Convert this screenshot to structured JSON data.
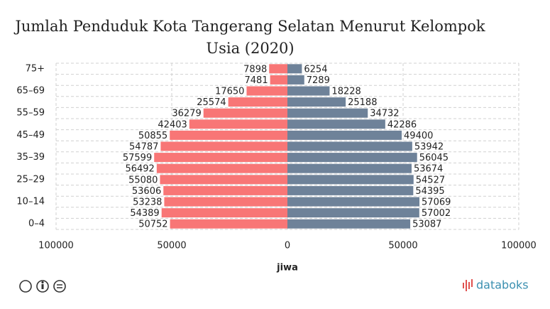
{
  "chart_data": {
    "type": "pyramid",
    "title": "Jumlah Penduduk Kota Tangerang Selatan Menurut Kelompok Usia (2020)",
    "x_label": "jiwa",
    "categories": [
      "0–4",
      null,
      "10–14",
      null,
      "25–29",
      null,
      "35–39",
      null,
      "45–49",
      null,
      "55–59",
      null,
      "65–69",
      null,
      "75+"
    ],
    "series": [
      {
        "side": "left",
        "color": "#f87676",
        "values": [
          50752,
          54389,
          53238,
          53606,
          55080,
          56492,
          57599,
          54787,
          50855,
          42403,
          36279,
          25574,
          17650,
          7481,
          7898
        ]
      },
      {
        "side": "right",
        "color": "#6e8299",
        "values": [
          53087,
          57002,
          57069,
          54395,
          54527,
          53674,
          56045,
          53942,
          49400,
          42286,
          34732,
          25188,
          18228,
          7289,
          6254
        ]
      }
    ],
    "xlim": [
      -100000,
      100000
    ],
    "xticks": [
      {
        "value": -100000,
        "label": "100000"
      },
      {
        "value": -50000,
        "label": "50000"
      },
      0,
      50000,
      100000
    ],
    "grid": true,
    "brand": "databoks"
  }
}
